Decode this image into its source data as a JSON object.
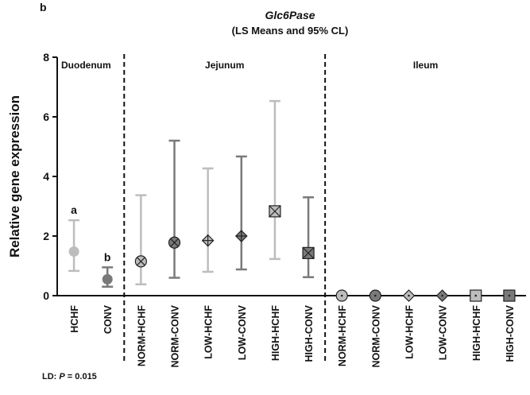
{
  "chart_data": {
    "type": "errorpoint",
    "panel_label": "b",
    "title": "Glc6Pase",
    "subtitle": "(LS Means and 95% CL)",
    "ylabel": "Relative gene expression",
    "ylim": [
      0,
      8
    ],
    "yticks": [
      0,
      2,
      4,
      6,
      8
    ],
    "groups": [
      {
        "name": "Duodenum",
        "categories": [
          "HCHF",
          "CONV"
        ],
        "values": [
          1.48,
          0.55
        ],
        "lower": [
          0.83,
          0.3
        ],
        "upper": [
          2.53,
          0.95
        ],
        "colors": [
          "#bdbdbd",
          "#7a7a7a"
        ],
        "letters": [
          "a",
          "b"
        ]
      },
      {
        "name": "Jejunum",
        "categories": [
          "NORM-HCHF",
          "NORM-CONV",
          "LOW-HCHF",
          "LOW-CONV",
          "HIGH-HCHF",
          "HIGH-CONV"
        ],
        "values": [
          1.15,
          1.78,
          1.85,
          2.0,
          2.83,
          1.43
        ],
        "lower": [
          0.38,
          0.6,
          0.8,
          0.88,
          1.23,
          0.62
        ],
        "upper": [
          3.37,
          5.2,
          4.27,
          4.67,
          6.53,
          3.3
        ],
        "colors": [
          "#bdbdbd",
          "#7a7a7a",
          "#bdbdbd",
          "#7a7a7a",
          "#bdbdbd",
          "#7a7a7a"
        ]
      },
      {
        "name": "Ileum",
        "categories": [
          "NORM-HCHF",
          "NORM-CONV",
          "LOW-HCHF",
          "LOW-CONV",
          "HIGH-HCHF",
          "HIGH-CONV"
        ],
        "values": [
          0,
          0,
          0,
          0,
          0,
          0
        ],
        "lower": [
          null,
          null,
          null,
          null,
          null,
          null
        ],
        "upper": [
          null,
          null,
          null,
          null,
          null,
          null
        ],
        "colors": [
          "#bdbdbd",
          "#7a7a7a",
          "#bdbdbd",
          "#7a7a7a",
          "#bdbdbd",
          "#7a7a7a"
        ]
      }
    ],
    "footnote": {
      "prefix": "LD:",
      "italic": "P",
      "suffix": "= 0.015"
    }
  }
}
